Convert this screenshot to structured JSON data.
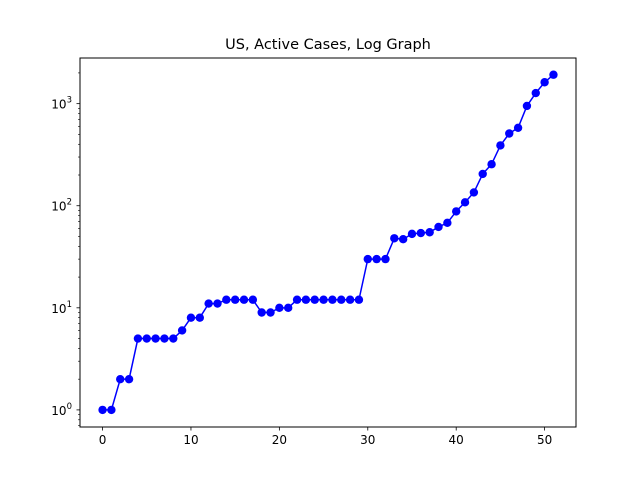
{
  "chart_data": {
    "type": "line",
    "title": "US, Active Cases, Log Graph",
    "xlabel": "",
    "ylabel": "",
    "yscale": "log",
    "xlim": [
      -2.55,
      53.55
    ],
    "ylim": [
      0.68,
      2800
    ],
    "x_ticks": [
      0,
      10,
      20,
      30,
      40,
      50
    ],
    "x_tick_labels": [
      "0",
      "10",
      "20",
      "30",
      "40",
      "50"
    ],
    "y_ticks": [
      1,
      10,
      100,
      1000
    ],
    "y_tick_labels": [
      {
        "base": "10",
        "exp": "0"
      },
      {
        "base": "10",
        "exp": "1"
      },
      {
        "base": "10",
        "exp": "2"
      },
      {
        "base": "10",
        "exp": "3"
      }
    ],
    "grid": false,
    "legend": "none",
    "series": [
      {
        "color": "#0000ff",
        "marker": "circle",
        "x": [
          0,
          1,
          2,
          3,
          4,
          5,
          6,
          7,
          8,
          9,
          10,
          11,
          12,
          13,
          14,
          15,
          16,
          17,
          18,
          19,
          20,
          21,
          22,
          23,
          24,
          25,
          26,
          27,
          28,
          29,
          30,
          31,
          32,
          33,
          34,
          35,
          36,
          37,
          38,
          39,
          40,
          41,
          42,
          43,
          44,
          45,
          46,
          47,
          48,
          49,
          50,
          51
        ],
        "y": [
          1,
          1,
          2,
          2,
          5,
          5,
          5,
          5,
          5,
          6,
          8,
          8,
          11,
          11,
          12,
          12,
          12,
          12,
          9,
          9,
          10,
          10,
          12,
          12,
          12,
          12,
          12,
          12,
          12,
          12,
          30,
          30,
          30,
          48,
          47,
          53,
          54,
          55,
          62,
          68,
          88,
          108,
          135,
          205,
          255,
          390,
          510,
          580,
          950,
          1270,
          1620,
          1920
        ]
      }
    ]
  }
}
